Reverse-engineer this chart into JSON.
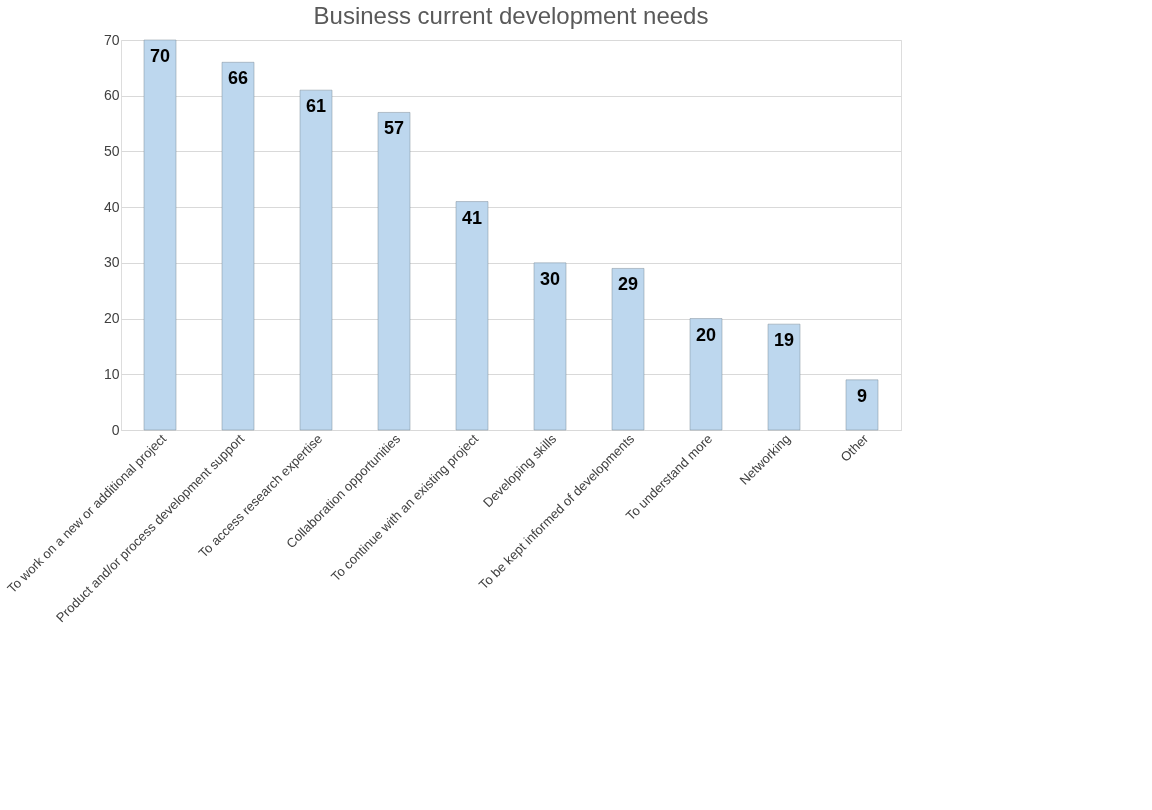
{
  "chart_data": {
    "type": "bar",
    "title": "Business current development needs",
    "categories": [
      "To work on a new or additional project",
      "Product and/or process development support",
      "To access research expertise",
      "Collaboration opportunities",
      "To continue with an existing project",
      "Developing skills",
      "To be kept informed of developments",
      "To understand more",
      "Networking",
      "Other"
    ],
    "values": [
      70,
      66,
      61,
      57,
      41,
      30,
      29,
      20,
      19,
      9
    ],
    "color": "#bdd7ee",
    "ylim": [
      0,
      70
    ],
    "yticks": [
      0,
      10,
      20,
      30,
      40,
      50,
      60,
      70
    ],
    "grid": "y",
    "data_labels": true
  }
}
